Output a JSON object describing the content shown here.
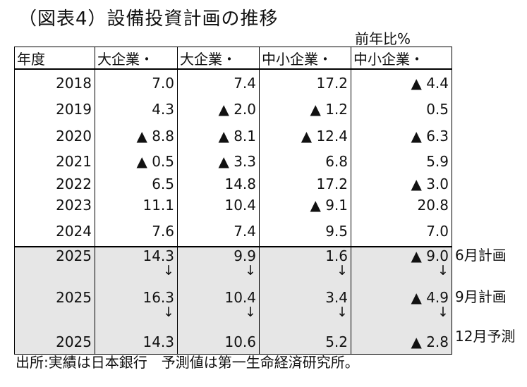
{
  "title": "（図表4）設備投資計画の推移",
  "unit": "前年比%",
  "headers": [
    "年度",
    "大企業・",
    "大企業・",
    "中小企業・",
    "中小企業・"
  ],
  "rows": [
    {
      "year": "2018",
      "v": [
        "7.0",
        "7.4",
        "17.2",
        "▲ 4.4"
      ]
    },
    {
      "year": "2019",
      "v": [
        "4.3",
        "▲ 2.0",
        "▲ 1.2",
        "0.5"
      ]
    },
    {
      "year": "2020",
      "v": [
        "▲ 8.8",
        "▲ 8.1",
        "▲ 12.4",
        "▲ 6.3"
      ]
    },
    {
      "year": "2021",
      "v": [
        "▲ 0.5",
        "▲ 3.3",
        "6.8",
        "5.9"
      ]
    },
    {
      "year": "2022",
      "v": [
        "6.5",
        "14.8",
        "17.2",
        "▲ 3.0"
      ]
    },
    {
      "year": "2023",
      "v": [
        "11.1",
        "10.4",
        "▲ 9.1",
        "20.8"
      ]
    },
    {
      "year": "2024",
      "v": [
        "7.6",
        "7.4",
        "9.5",
        "7.0"
      ]
    }
  ],
  "plans": [
    {
      "year": "2025",
      "v": [
        "14.3",
        "9.9",
        "1.6",
        "▲ 9.0"
      ],
      "label": "6月計画"
    },
    {
      "year": "2025",
      "v": [
        "16.3",
        "10.4",
        "3.4",
        "▲ 4.9"
      ],
      "label": "9月計画"
    },
    {
      "year": "2025",
      "v": [
        "14.3",
        "10.6",
        "5.2",
        "▲ 2.8"
      ],
      "label": "12月予測"
    }
  ],
  "arrow": "↓",
  "source": "出所:実績は日本銀行　予測値は第一生命経済研究所。"
}
